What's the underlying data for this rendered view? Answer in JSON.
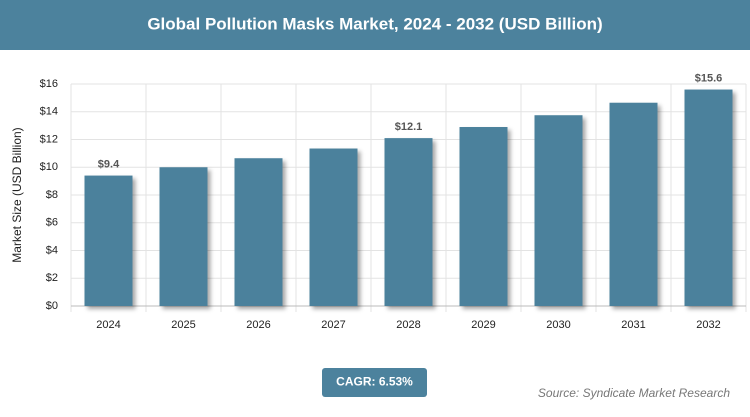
{
  "chart_data": {
    "type": "bar",
    "title": "Global Pollution Masks Market, 2024 - 2032 (USD Billion)",
    "y_axis_label": "Market Size (USD Billion)",
    "categories": [
      "2024",
      "2025",
      "2026",
      "2027",
      "2028",
      "2029",
      "2030",
      "2031",
      "2032"
    ],
    "values": [
      9.4,
      10.0,
      10.65,
      11.35,
      12.1,
      12.9,
      13.75,
      14.65,
      15.6
    ],
    "value_labels": [
      "$9.4",
      null,
      null,
      null,
      "$12.1",
      null,
      null,
      null,
      "$15.6"
    ],
    "color": "#4b819c",
    "ylim": [
      0,
      16
    ],
    "yticks": [
      {
        "value": 0,
        "label": "$0"
      },
      {
        "value": 2,
        "label": "$2"
      },
      {
        "value": 4,
        "label": "$4"
      },
      {
        "value": 6,
        "label": "$6"
      },
      {
        "value": 8,
        "label": "$8"
      },
      {
        "value": 10,
        "label": "$10"
      },
      {
        "value": 12,
        "label": "$12"
      },
      {
        "value": 14,
        "label": "$14"
      },
      {
        "value": 16,
        "label": "$16"
      }
    ],
    "grid": true,
    "cagr": "CAGR: 6.53%",
    "source": "Source: Syndicate Market Research"
  }
}
